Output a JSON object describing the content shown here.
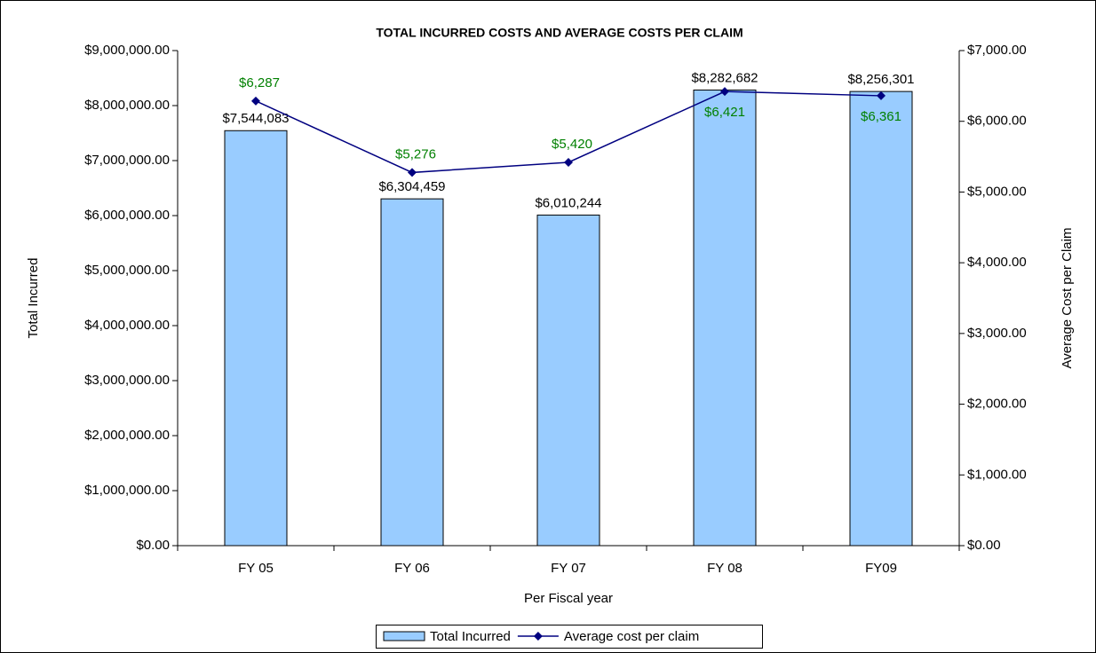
{
  "chart_data": {
    "type": "bar_line",
    "title": "TOTAL INCURRED COSTS AND AVERAGE COSTS PER CLAIM",
    "xlabel": "Per Fiscal year",
    "ylabel": "Total Incurred",
    "y2label": "Average Cost per Claim",
    "categories": [
      "FY 05",
      "FY 06",
      "FY 07",
      "FY 08",
      "FY09"
    ],
    "series": [
      {
        "name": "Total Incurred",
        "type": "bar",
        "color": "#99ccff",
        "values": [
          7544083,
          6304459,
          6010244,
          8282682,
          8256301
        ],
        "value_labels": [
          "$7,544,083",
          "$6,304,459",
          "$6,010,244",
          "$8,282,682",
          "$8,256,301"
        ]
      },
      {
        "name": "Average cost per claim",
        "type": "line",
        "axis": "y2",
        "color": "#000080",
        "label_color": "#008000",
        "values": [
          6287,
          5276,
          5420,
          6421,
          6361
        ],
        "value_labels": [
          "$6,287",
          "$5,276",
          "$5,420",
          "$6,421",
          "$6,361"
        ]
      }
    ],
    "ylim": [
      0,
      9000000
    ],
    "yticks": [
      {
        "value": 0,
        "label": "$0.00"
      },
      {
        "value": 1000000,
        "label": "$1,000,000.00"
      },
      {
        "value": 2000000,
        "label": "$2,000,000.00"
      },
      {
        "value": 3000000,
        "label": "$3,000,000.00"
      },
      {
        "value": 4000000,
        "label": "$4,000,000.00"
      },
      {
        "value": 5000000,
        "label": "$5,000,000.00"
      },
      {
        "value": 6000000,
        "label": "$6,000,000.00"
      },
      {
        "value": 7000000,
        "label": "$7,000,000.00"
      },
      {
        "value": 8000000,
        "label": "$8,000,000.00"
      },
      {
        "value": 9000000,
        "label": "$9,000,000.00"
      }
    ],
    "y2lim": [
      0,
      7000
    ],
    "y2ticks": [
      {
        "value": 0,
        "label": "$0.00"
      },
      {
        "value": 1000,
        "label": "$1,000.00"
      },
      {
        "value": 2000,
        "label": "$2,000.00"
      },
      {
        "value": 3000,
        "label": "$3,000.00"
      },
      {
        "value": 4000,
        "label": "$4,000.00"
      },
      {
        "value": 5000,
        "label": "$5,000.00"
      },
      {
        "value": 6000,
        "label": "$6,000.00"
      },
      {
        "value": 7000,
        "label": "$7,000.00"
      }
    ],
    "legend": "bottom"
  }
}
